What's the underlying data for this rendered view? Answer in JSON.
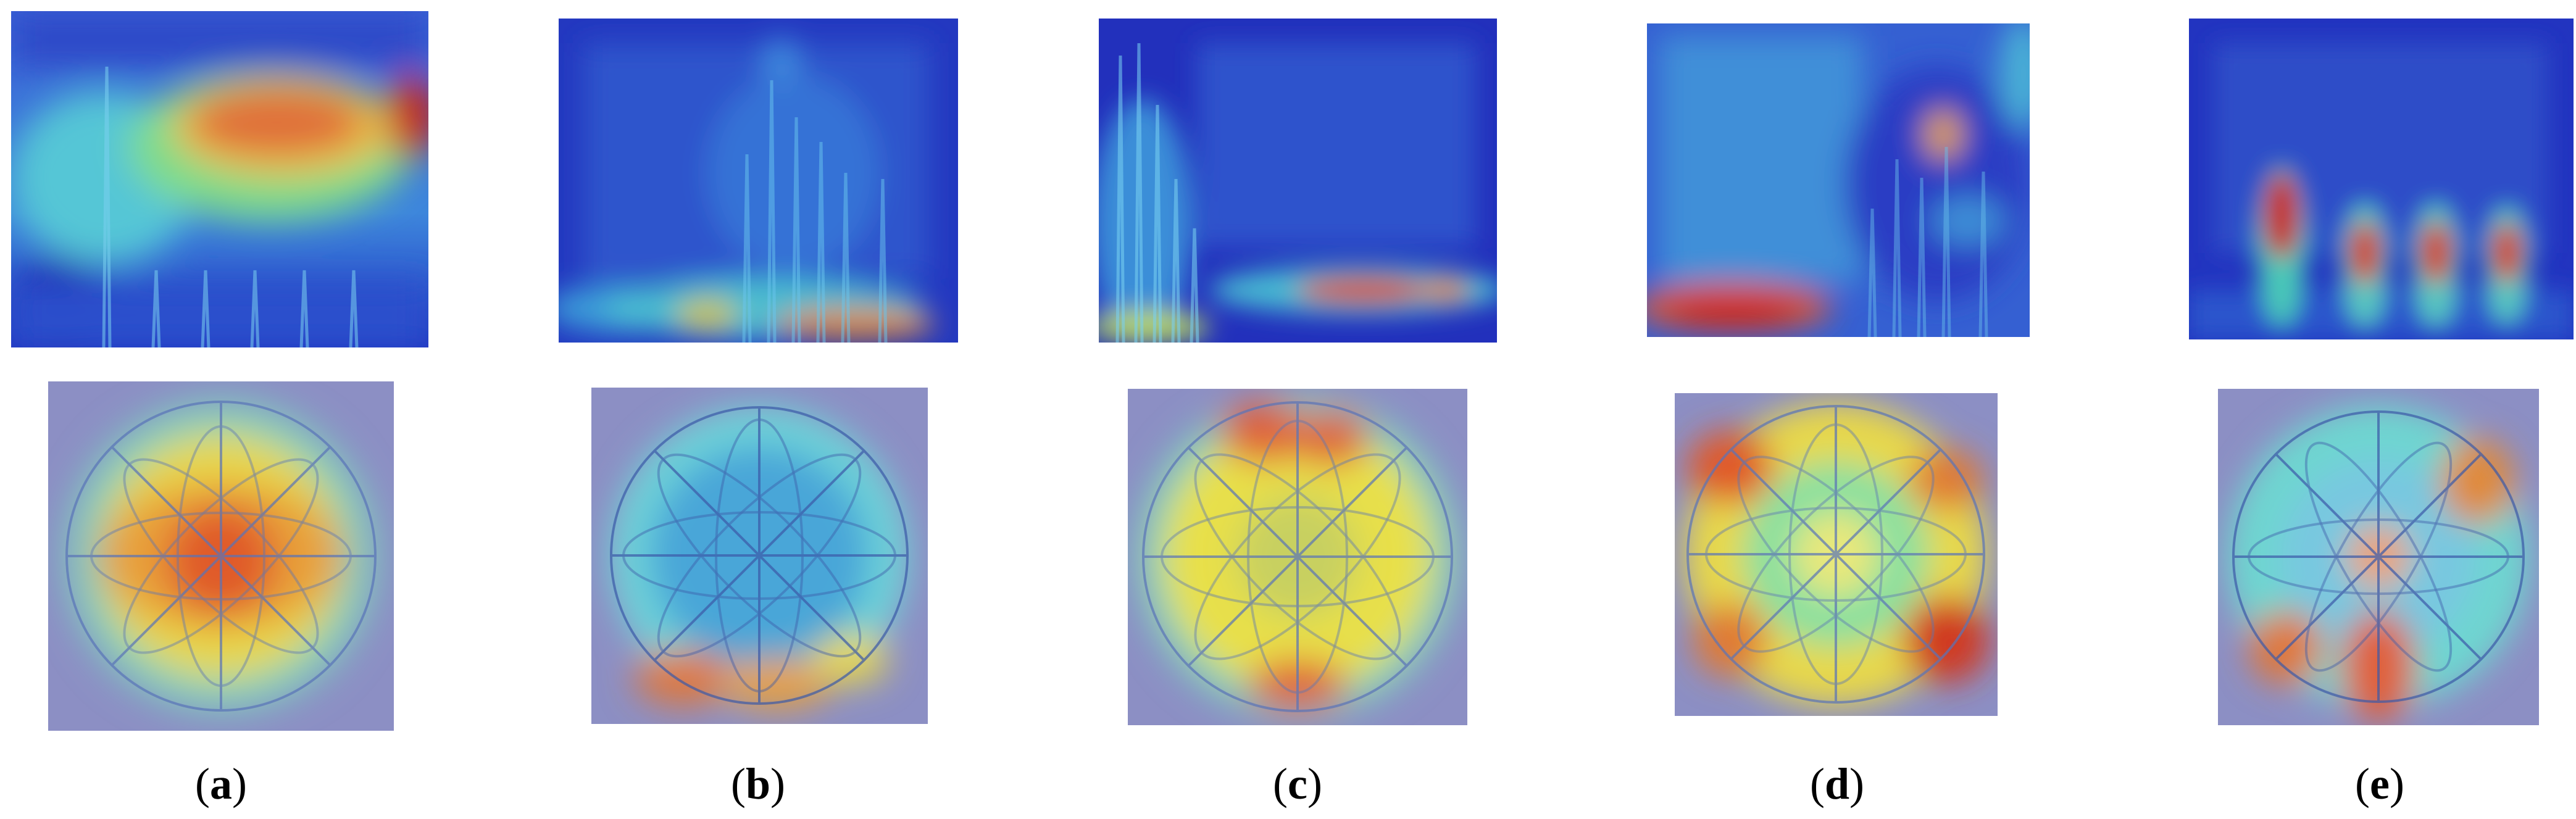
{
  "figure": {
    "panels": [
      {
        "id": "a",
        "caption_letter": "a"
      },
      {
        "id": "b",
        "caption_letter": "b"
      },
      {
        "id": "c",
        "caption_letter": "c"
      },
      {
        "id": "d",
        "caption_letter": "d"
      },
      {
        "id": "e",
        "caption_letter": "e"
      }
    ],
    "colors": {
      "heat_low": "#1a1fb0",
      "heat_mid_low": "#2f8fd8",
      "heat_mid": "#58d0c8",
      "heat_mid_high": "#e8e04a",
      "heat_high": "#e8401e",
      "background_mat": "#8c8fc4"
    }
  }
}
